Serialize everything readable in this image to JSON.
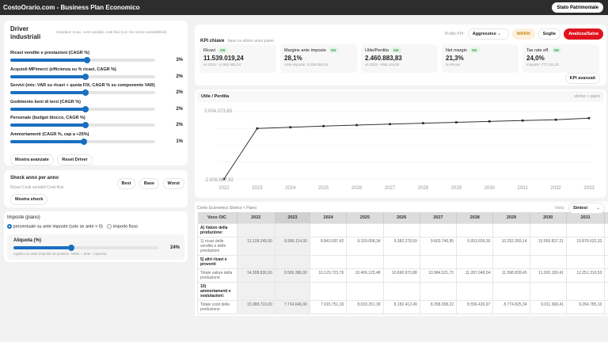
{
  "header": {
    "title": "CostoOrario.com - Business Plan Economico",
    "stato_button": "Stato Patrimoniale"
  },
  "drivers": {
    "title": "Driver industriali",
    "subtitle": "Standard: ricavi, costi variabili, costi fissi (con mix servizi variabili/fissi).",
    "items": [
      {
        "label": "Ricavi vendite e prestazioni (CAGR %)",
        "value": "3%",
        "fill": 0.53
      },
      {
        "label": "Acquisti MP/merci (efficienza su % ricavi, CAGR %)",
        "value": "2%",
        "fill": 0.52
      },
      {
        "label": "Servizi (mix: VAR su ricavi + quota FIX, CAGR % su componente VAR)",
        "value": "2%",
        "fill": 0.52
      },
      {
        "label": "Godimento beni di terzi (CAGR %)",
        "value": "2%",
        "fill": 0.52
      },
      {
        "label": "Personale (budget blocco, CAGR %)",
        "value": "2%",
        "fill": 0.52
      },
      {
        "label": "Ammortamenti (CAGR %, cap a +25%)",
        "value": "1%",
        "fill": 0.51
      }
    ],
    "advanced_button": "Mostra avanzate",
    "reset_button": "Reset Driver"
  },
  "shock": {
    "title": "Shock anno per anno",
    "buttons": [
      "Best",
      "Base",
      "Worst"
    ],
    "subtitle": "Ricavi Costi variabili Costi fissi",
    "show_button": "Mostra shock"
  },
  "taxes": {
    "title": "Imposte (piano)",
    "option1": "percentuale su ante imposte (solo se ante > 0)",
    "option2": "importo fisso",
    "selected": "option1",
    "rate_label": "Aliquota (%)",
    "rate_value": "24%",
    "rate_fill": 0.4,
    "note": "Applico su ante imposte se positivo. Netto = ante - imposta."
  },
  "kpi": {
    "title": "KPI chiave",
    "subtitle": "base vs ultimo anno piano",
    "profile_label": "Profilo KPI:",
    "profile_value": "Aggressivo",
    "warn": "WARN",
    "soglie": "Soglie",
    "analizza": "Analizza/Salva",
    "advanced": "KPI avanzati",
    "cards": [
      {
        "title": "Ricavi",
        "badge": "OK",
        "value": "11.539.019,24",
        "sub": "vs 2023: +2.952.905,24"
      },
      {
        "title": "Margine ante imposte",
        "badge": "OK",
        "value": "28,1%",
        "sub": "Ante imposte: 3.238.005,04"
      },
      {
        "title": "Utile/Perdita",
        "badge": "OK",
        "value": "2.460.883,83",
        "sub": "vs 2023: +858.149,83"
      },
      {
        "title": "Net margin",
        "badge": "OK",
        "value": "21,3%",
        "sub": "su Ricavi"
      },
      {
        "title": "Tax rate eff.",
        "badge": "OK",
        "value": "24,0%",
        "sub": "Imposte: 777.121,21"
      }
    ]
  },
  "chart_data": {
    "type": "line",
    "title": "Utile / Perdita",
    "subtitle": "storico + piano",
    "x": [
      "2022",
      "2023",
      "2024",
      "2025",
      "2026",
      "2027",
      "2028",
      "2029",
      "2030",
      "2031",
      "2032",
      "2033"
    ],
    "values": [
      -2608887.82,
      1602734,
      1700000,
      1800000,
      1880000,
      1960000,
      2040000,
      2110000,
      2190000,
      2260000,
      2330000,
      2460883.83
    ],
    "ylim": [
      -2608887.82,
      3004073.65
    ],
    "ytick_labels": [
      "3.004.073,65",
      "-2.608.887,82"
    ],
    "grid": true
  },
  "table": {
    "title": "Conto Economico Storico + Piano",
    "view_label": "Vista:",
    "view_value": "Sintesi",
    "columns": [
      "Voce OIC",
      "2022",
      "2023",
      "2024",
      "2025",
      "2026",
      "2027",
      "2028",
      "2029",
      "2030",
      "2031",
      "2032"
    ],
    "rows": [
      {
        "label": "A) Valore della produzione:",
        "header": true,
        "cells": []
      },
      {
        "label": "1) ricavi delle vendite e delle prestazioni",
        "cells": [
          "13.128.249,00",
          "8.586.114,00",
          "8.843.697,42",
          "9.109.008,34",
          "9.382.278,59",
          "9.663.746,95",
          "9.953.659,36",
          "10.252.269,14",
          "10.559.837,21",
          "10.876.632,33",
          "11.202"
        ]
      },
      {
        "label": "5) altri ricavi e proventi",
        "header": true,
        "cells": []
      },
      {
        "label": "Totale valore della produzione",
        "cells": [
          "14.308.830,00",
          "9.509.386,00",
          "10.129.723,76",
          "10.406.125,48",
          "10.690.970,88",
          "10.984.521,72",
          "11.287.048,04",
          "11.598.828,45",
          "11.920.150,41",
          "12.251.310,53",
          "12.592"
        ]
      },
      {
        "label": "10) ammortamenti e svalutazioni:",
        "header": true,
        "cells": []
      },
      {
        "label": "Totale costi della produzione",
        "cells": [
          "15.988.710,00",
          "7.714.646,00",
          "7.915.751,33",
          "8.033.251,39",
          "8.182.412,49",
          "8.358.058,22",
          "8.556.426,97",
          "8.774.825,34",
          "9.011.368,41",
          "9.264.785,16",
          "9.534"
        ]
      }
    ]
  }
}
